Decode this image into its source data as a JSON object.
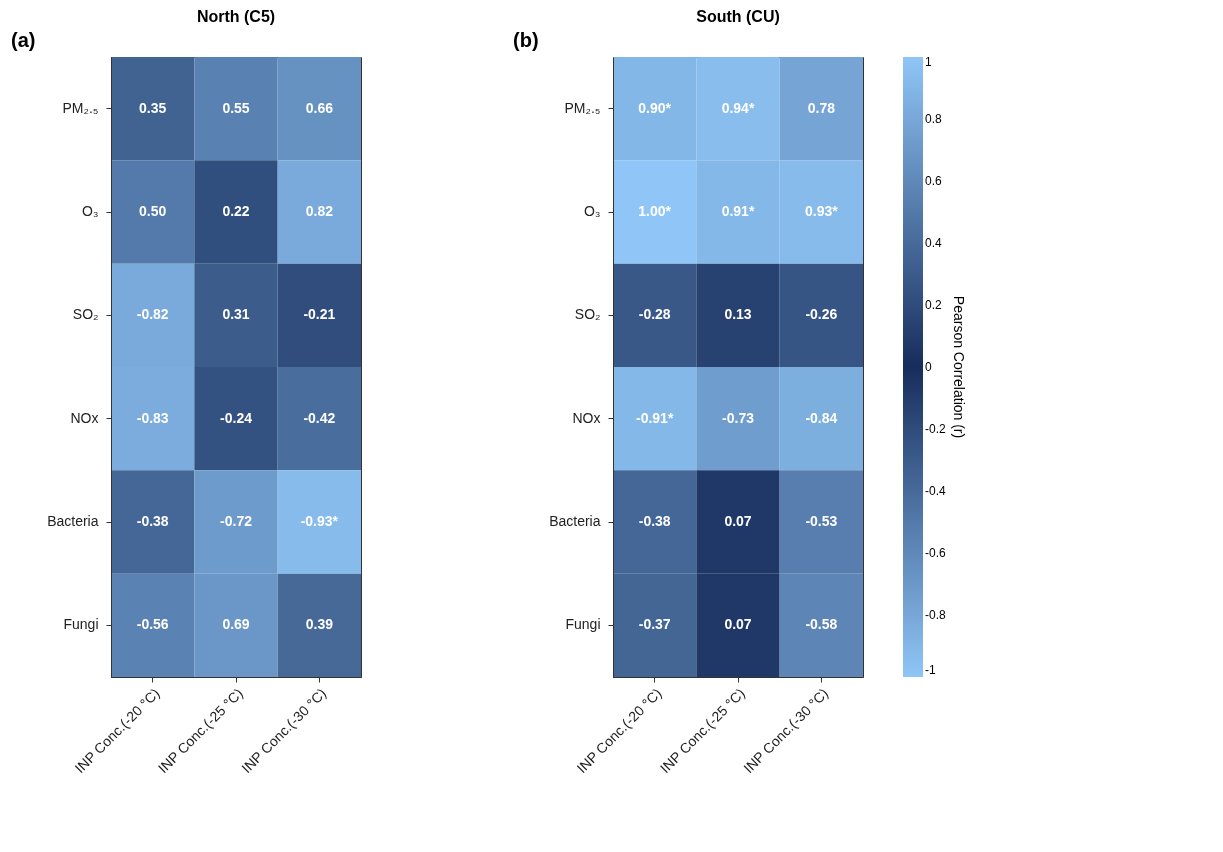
{
  "chart_data": [
    {
      "type": "heatmap",
      "title": "North (C5)",
      "annotations": [
        "(a)"
      ],
      "categories": [
        "INP Conc.(-20 °C)",
        "INP Conc.(-25 °C)",
        "INP Conc.(-30 °C)"
      ],
      "y_categories": [
        "PM₂.₅",
        "O₃",
        "SO₂",
        "NOx",
        "Bacteria",
        "Fungi"
      ],
      "cells": [
        [
          0.35,
          0.55,
          0.66
        ],
        [
          0.5,
          0.22,
          0.82
        ],
        [
          -0.82,
          0.31,
          -0.21
        ],
        [
          -0.83,
          -0.24,
          -0.42
        ],
        [
          -0.38,
          -0.72,
          -0.93
        ],
        [
          -0.56,
          0.69,
          0.39
        ]
      ],
      "cell_labels": [
        [
          "0.35",
          "0.55",
          "0.66"
        ],
        [
          "0.50",
          "0.22",
          "0.82"
        ],
        [
          "-0.82",
          "0.31",
          "-0.21"
        ],
        [
          "-0.83",
          "-0.24",
          "-0.42"
        ],
        [
          "-0.38",
          "-0.72",
          "-0.93*"
        ],
        [
          "-0.56",
          "0.69",
          "0.39"
        ]
      ]
    },
    {
      "type": "heatmap",
      "title": "South (CU)",
      "annotations": [
        "(b)"
      ],
      "categories": [
        "INP Conc.(-20 °C)",
        "INP Conc.(-25 °C)",
        "INP Conc.(-30 °C)"
      ],
      "y_categories": [
        "PM₂.₅",
        "O₃",
        "SO₂",
        "NOx",
        "Bacteria",
        "Fungi"
      ],
      "cells": [
        [
          0.9,
          0.94,
          0.78
        ],
        [
          1.0,
          0.91,
          0.93
        ],
        [
          -0.28,
          0.13,
          -0.26
        ],
        [
          -0.91,
          -0.73,
          -0.84
        ],
        [
          -0.38,
          0.07,
          -0.53
        ],
        [
          -0.37,
          0.07,
          -0.58
        ]
      ],
      "cell_labels": [
        [
          "0.90*",
          "0.94*",
          "0.78"
        ],
        [
          "1.00*",
          "0.91*",
          "0.93*"
        ],
        [
          "-0.28",
          "0.13",
          "-0.26"
        ],
        [
          "-0.91*",
          "-0.73",
          "-0.84"
        ],
        [
          "-0.38",
          "0.07",
          "-0.53"
        ],
        [
          "-0.37",
          "0.07",
          "-0.58"
        ]
      ],
      "clabel": "Pearson Correlation (r)",
      "clim": [
        -1,
        1
      ],
      "cticks": [
        -1,
        -0.8,
        -0.6,
        -0.4,
        -0.2,
        0,
        0.2,
        0.4,
        0.6,
        0.8,
        1
      ]
    }
  ]
}
